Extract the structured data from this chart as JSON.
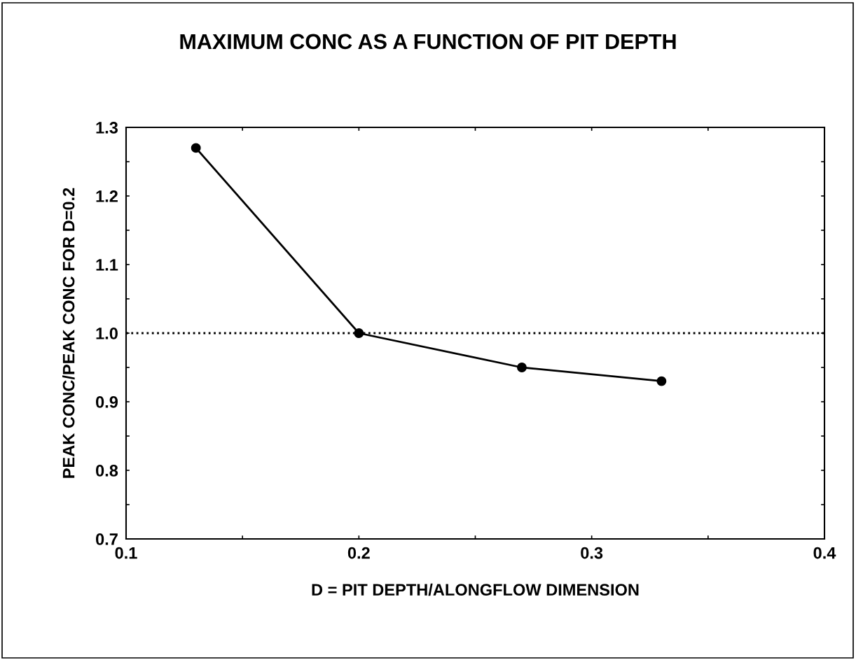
{
  "chart_data": {
    "type": "line",
    "title": "MAXIMUM CONC AS A FUNCTION OF PIT DEPTH",
    "xlabel": "D = PIT DEPTH/ALONGFLOW DIMENSION",
    "ylabel": "PEAK CONC/PEAK CONC FOR D=0.2",
    "x": [
      0.13,
      0.2,
      0.27,
      0.33
    ],
    "series": [
      {
        "color": "#000000",
        "values": [
          1.27,
          1.0,
          0.95,
          0.93
        ]
      }
    ],
    "xlim": [
      0.1,
      0.4
    ],
    "ylim": [
      0.7,
      1.3
    ],
    "xticks": [
      {
        "value": 0.1,
        "label": "0.1"
      },
      {
        "value": 0.15,
        "label": null
      },
      {
        "value": 0.2,
        "label": "0.2"
      },
      {
        "value": 0.25,
        "label": null
      },
      {
        "value": 0.3,
        "label": "0.3"
      },
      {
        "value": 0.35,
        "label": null
      },
      {
        "value": 0.4,
        "label": "0.4"
      }
    ],
    "yticks": [
      {
        "value": 0.7,
        "label": "0.7"
      },
      {
        "value": 0.75,
        "label": null
      },
      {
        "value": 0.8,
        "label": "0.8"
      },
      {
        "value": 0.85,
        "label": null
      },
      {
        "value": 0.9,
        "label": "0.9"
      },
      {
        "value": 0.95,
        "label": null
      },
      {
        "value": 1.0,
        "label": "1.0"
      },
      {
        "value": 1.05,
        "label": null
      },
      {
        "value": 1.1,
        "label": "1.1"
      },
      {
        "value": 1.15,
        "label": null
      },
      {
        "value": 1.2,
        "label": "1.2"
      },
      {
        "value": 1.25,
        "label": null
      },
      {
        "value": 1.3,
        "label": "1.3"
      }
    ],
    "ref_lines": [
      {
        "axis": "y",
        "value": 1.0,
        "line_style": "dotted",
        "color": "#000000"
      }
    ],
    "marker": "circle",
    "line_style": "solid",
    "grid": false,
    "legend": false
  }
}
